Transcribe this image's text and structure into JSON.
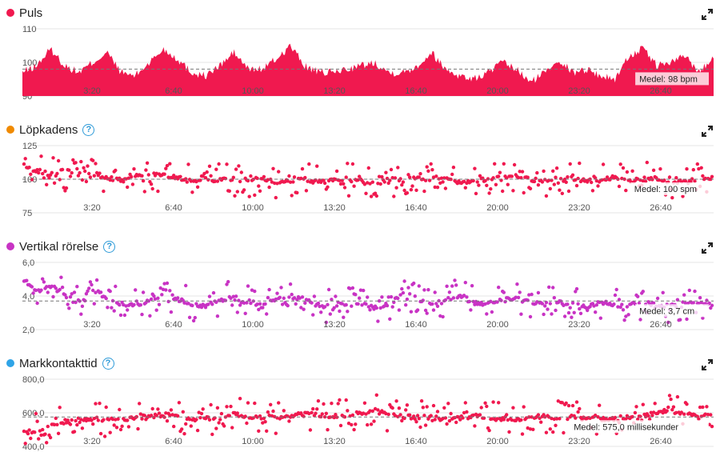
{
  "colors": {
    "red": "#f0194f",
    "orange": "#f08a00",
    "magenta": "#c833c4",
    "blue": "#2fa4e7",
    "help": "#2f9bd8"
  },
  "xticks": [
    "3:20",
    "6:40",
    "10:00",
    "13:20",
    "16:40",
    "20:00",
    "23:20",
    "26:40"
  ],
  "panels": [
    {
      "id": "puls",
      "title": "Puls",
      "dot_color": "red",
      "has_help": false,
      "chart_data": {
        "type": "area",
        "title": "Puls",
        "ylim": [
          90,
          110
        ],
        "yticks": [
          "110",
          "100",
          "90"
        ],
        "average": {
          "value": 98,
          "label": "Medel: 98 bpm"
        },
        "series_color": "red",
        "trend": [
          97,
          99,
          104,
          99,
          97,
          100,
          103,
          97,
          96,
          100,
          104,
          101,
          97,
          96,
          99,
          103,
          98,
          98,
          101,
          105,
          99,
          97,
          97,
          98,
          99,
          100,
          97,
          97,
          99,
          103,
          98,
          96,
          95,
          97,
          100,
          98,
          94,
          97,
          101,
          97,
          98,
          96,
          95,
          102,
          104,
          99,
          100,
          102,
          97,
          102
        ]
      }
    },
    {
      "id": "lopkadens",
      "title": "Löpkadens",
      "dot_color": "orange",
      "has_help": true,
      "chart_data": {
        "type": "scatter",
        "title": "Löpkadens",
        "ylim": [
          75,
          125
        ],
        "yticks": [
          "125",
          "100",
          "75"
        ],
        "average": {
          "value": 100,
          "label": "Medel: 100 spm"
        },
        "series_color": "red",
        "trend": [
          110,
          106,
          104,
          103,
          104,
          102,
          101,
          99,
          102,
          104,
          103,
          101,
          98,
          100,
          99,
          100,
          99,
          101,
          98,
          99,
          100,
          98,
          99,
          100,
          98,
          97,
          100,
          99,
          101,
          99,
          100,
          98,
          99,
          100,
          101,
          102,
          100,
          99,
          100,
          101,
          99,
          100,
          101,
          99,
          100,
          101,
          98,
          99,
          100,
          99
        ]
      }
    },
    {
      "id": "vertikal",
      "title": "Vertikal rörelse",
      "dot_color": "magenta",
      "has_help": true,
      "chart_data": {
        "type": "scatter",
        "title": "Vertikal rörelse",
        "ylim": [
          2.0,
          6.0
        ],
        "yticks": [
          "6,0",
          "4,0",
          "2,0"
        ],
        "average": {
          "value": 3.7,
          "label": "Medel: 3,7 cm"
        },
        "series_color": "magenta",
        "trend": [
          4.9,
          4.3,
          4.6,
          4.0,
          3.6,
          4.3,
          3.9,
          3.5,
          3.4,
          3.8,
          4.1,
          3.8,
          3.5,
          3.4,
          3.8,
          3.9,
          3.6,
          3.4,
          3.9,
          4.0,
          3.7,
          3.4,
          3.4,
          3.5,
          3.5,
          3.3,
          3.4,
          4.3,
          3.8,
          3.5,
          3.7,
          4.1,
          3.6,
          3.5,
          3.7,
          3.9,
          3.6,
          3.5,
          3.6,
          3.5,
          3.4,
          3.6,
          3.5,
          3.4,
          3.6,
          3.5,
          3.4,
          3.5,
          3.6,
          3.5
        ]
      }
    },
    {
      "id": "markkontakttid",
      "title": "Markkontakttid",
      "dot_color": "blue",
      "has_help": true,
      "chart_data": {
        "type": "scatter",
        "title": "Markkontakttid",
        "ylim": [
          400,
          800
        ],
        "yticks": [
          "800,0",
          "600,0",
          "400,0"
        ],
        "average": {
          "value": 575,
          "label": "Medel: 575,0 millisekunder"
        },
        "series_color": "red",
        "trend": [
          480,
          500,
          530,
          550,
          555,
          560,
          555,
          560,
          570,
          580,
          590,
          575,
          560,
          565,
          580,
          590,
          580,
          575,
          570,
          585,
          600,
          590,
          580,
          585,
          600,
          610,
          590,
          580,
          570,
          575,
          560,
          570,
          580,
          575,
          565,
          560,
          575,
          580,
          570,
          575,
          570,
          565,
          560,
          575,
          580,
          600,
          610,
          590,
          585,
          600
        ]
      }
    }
  ]
}
